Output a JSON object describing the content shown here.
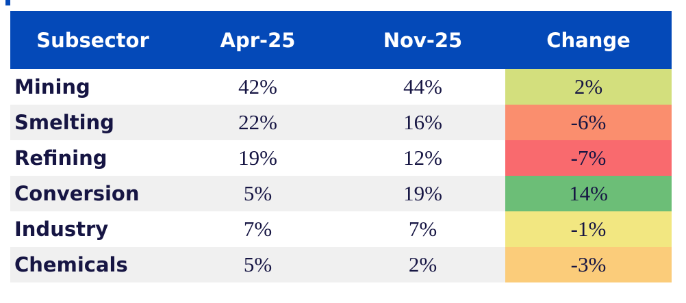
{
  "chart_data": {
    "type": "table",
    "title": "",
    "columns": [
      "Subsector",
      "Apr-25",
      "Nov-25",
      "Change"
    ],
    "rows": [
      {
        "subsector": "Mining",
        "apr_25": "42%",
        "nov_25": "44%",
        "change": "2%",
        "change_bg": "#d3df7d"
      },
      {
        "subsector": "Smelting",
        "apr_25": "22%",
        "nov_25": "16%",
        "change": "-6%",
        "change_bg": "#fa8e6e"
      },
      {
        "subsector": "Refining",
        "apr_25": "19%",
        "nov_25": "12%",
        "change": "-7%",
        "change_bg": "#f96a6e"
      },
      {
        "subsector": "Conversion",
        "apr_25": "5%",
        "nov_25": "19%",
        "change": "14%",
        "change_bg": "#6cbe77"
      },
      {
        "subsector": "Industry",
        "apr_25": "7%",
        "nov_25": "7%",
        "change": "-1%",
        "change_bg": "#f2e781"
      },
      {
        "subsector": "Chemicals",
        "apr_25": "5%",
        "nov_25": "2%",
        "change": "-3%",
        "change_bg": "#fbcc7a"
      }
    ],
    "colors": {
      "header_bg": "#0449b8",
      "header_text": "#ffffff",
      "body_text": "#161543",
      "row_bg": "#ffffff",
      "row_alt_bg": "#f0f0f0"
    },
    "layout": {
      "legend": "none",
      "grid": "off",
      "change_column": "heatmap-colored"
    }
  }
}
